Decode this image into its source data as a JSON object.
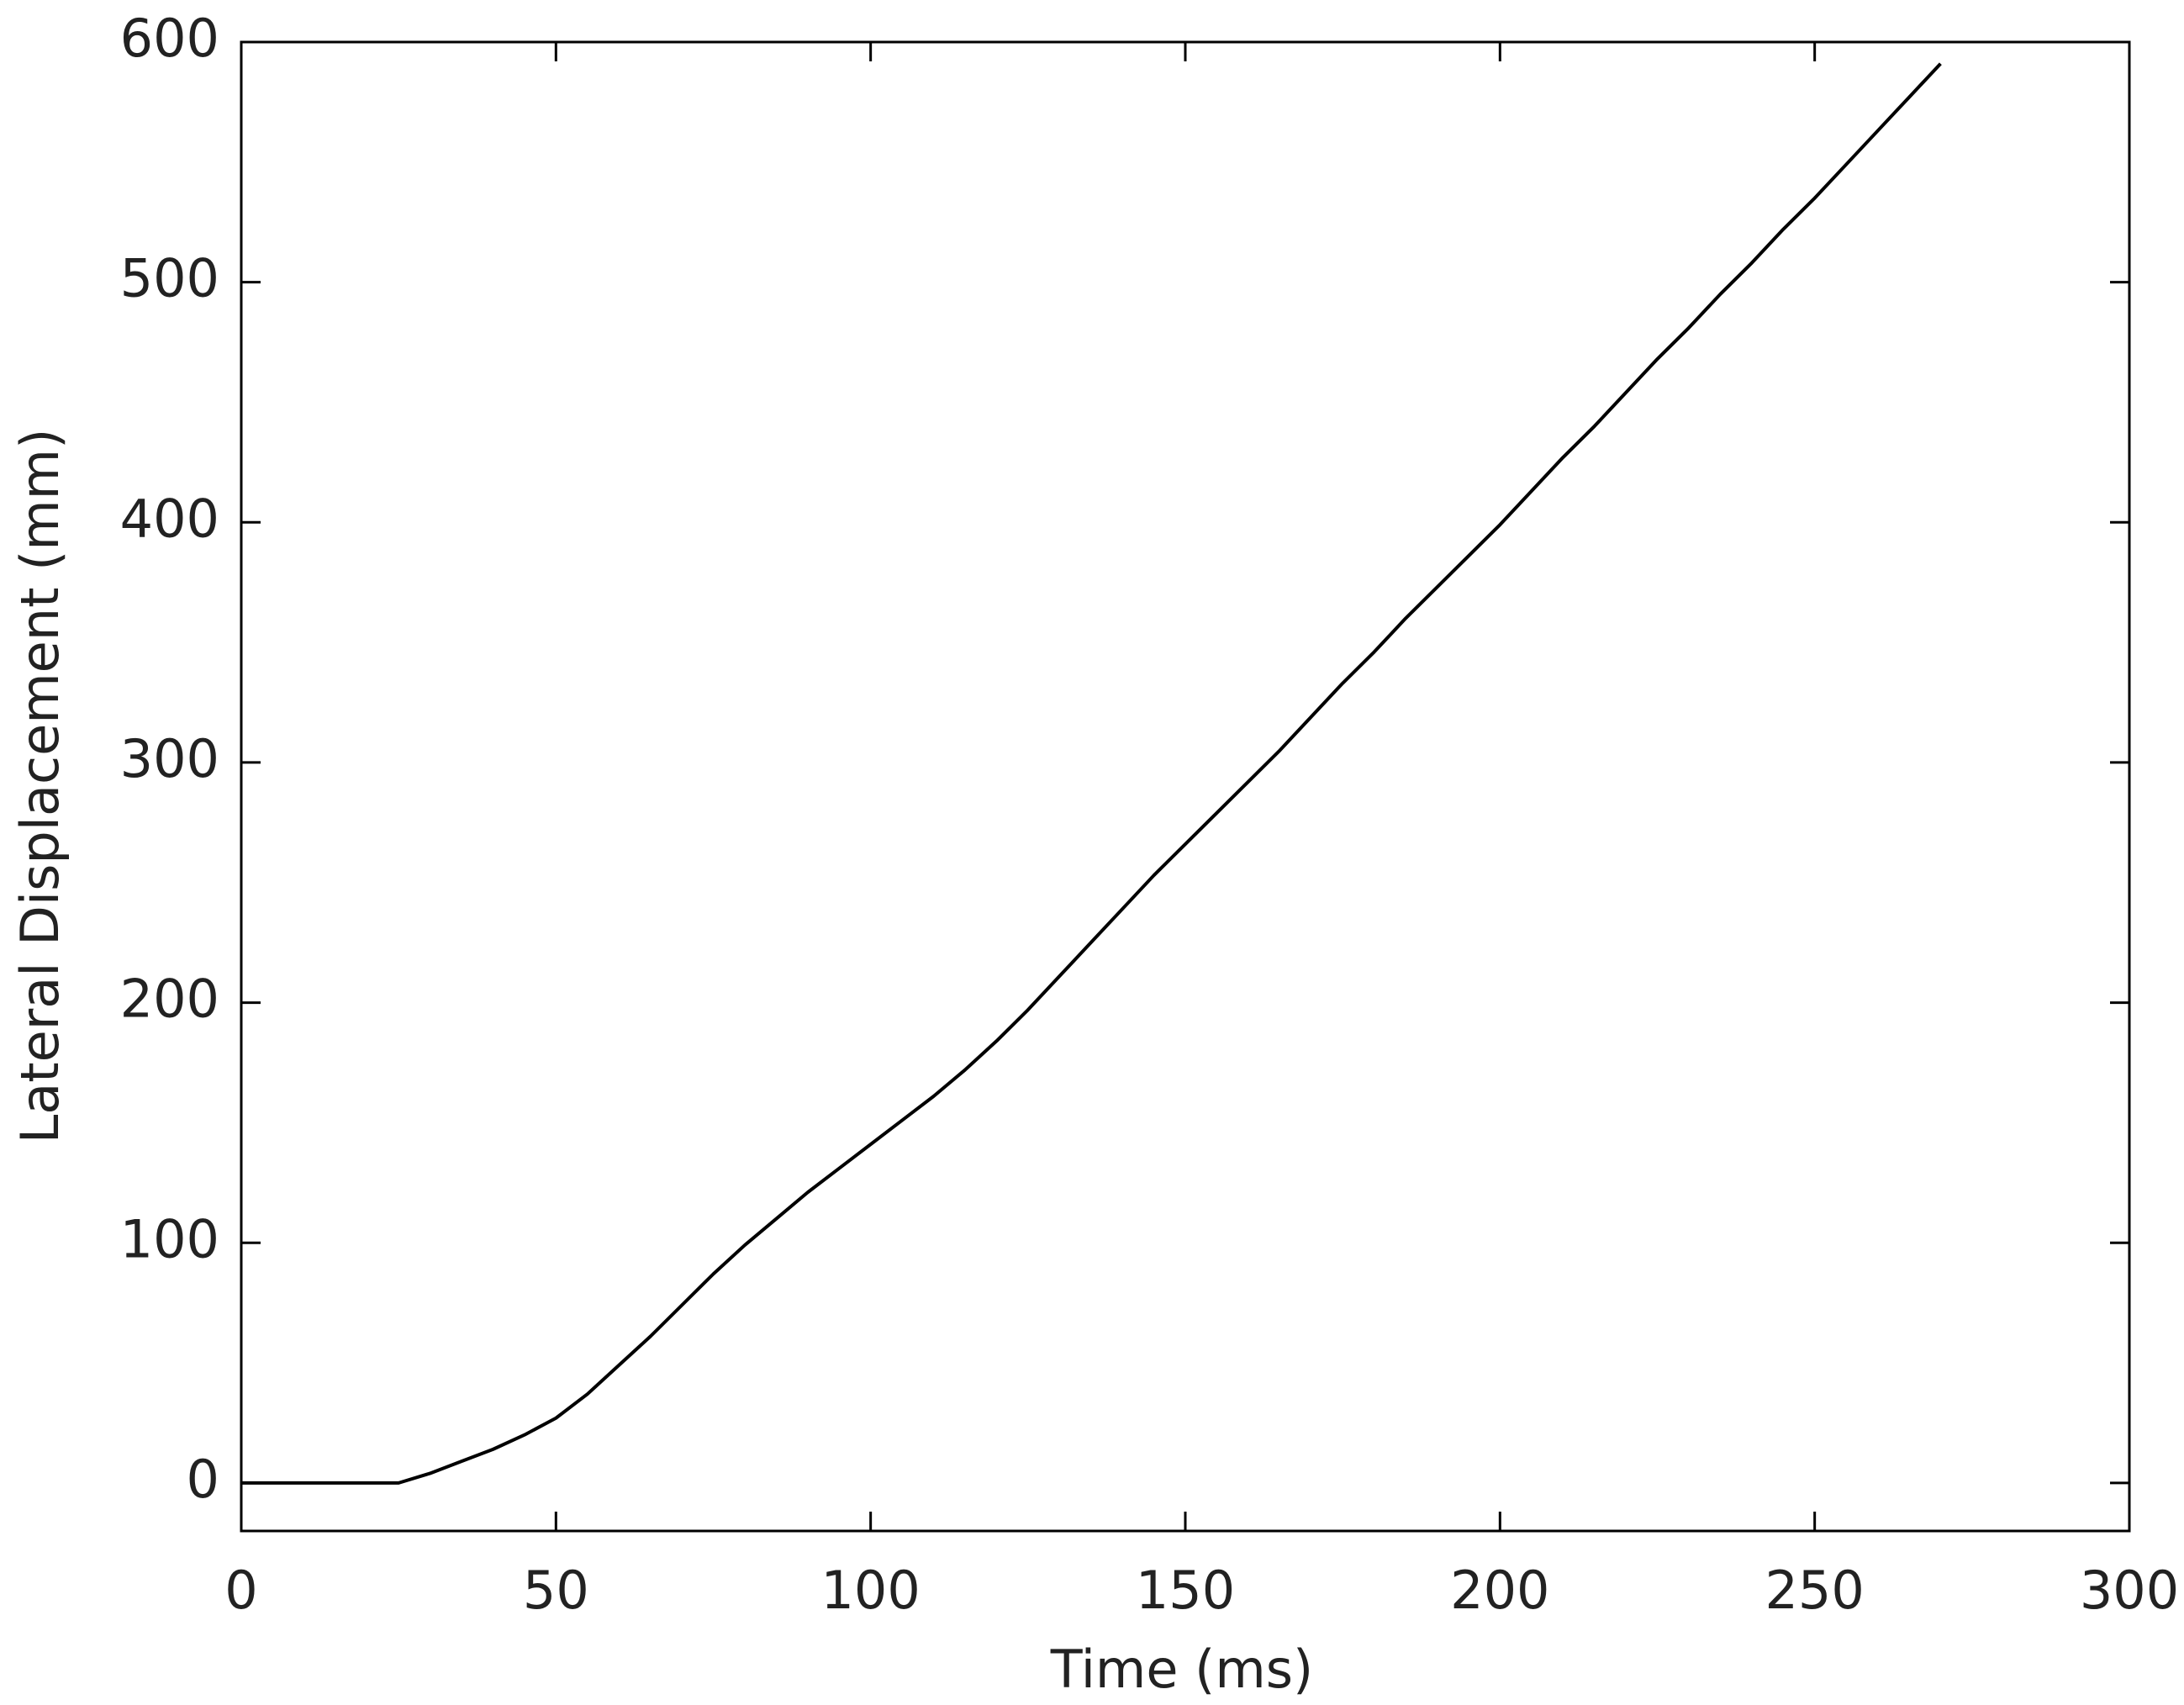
{
  "chart_data": {
    "type": "line",
    "xlabel": "Time (ms)",
    "ylabel": "Lateral Displacement (mm)",
    "x": [
      0,
      5,
      10,
      15,
      20,
      25,
      30,
      35,
      40,
      45,
      50,
      55,
      60,
      65,
      70,
      75,
      80,
      85,
      90,
      95,
      100,
      105,
      110,
      115,
      120,
      125,
      130,
      135,
      140,
      145,
      150,
      155,
      160,
      165,
      170,
      175,
      180,
      185,
      190,
      195,
      200,
      205,
      210,
      215,
      220,
      225,
      230,
      235,
      240,
      245,
      250,
      255,
      260,
      265,
      270
    ],
    "series": [
      {
        "color": "#000000",
        "values": [
          0,
          0,
          0,
          0,
          0,
          0,
          4,
          9,
          14,
          20,
          27,
          37,
          49,
          61,
          74,
          87,
          99,
          110,
          121,
          131,
          141,
          151,
          161,
          172,
          184,
          197,
          211,
          225,
          239,
          253,
          266,
          279,
          292,
          305,
          319,
          333,
          346,
          360,
          373,
          386,
          399,
          413,
          427,
          440,
          454,
          468,
          481,
          495,
          508,
          522,
          535,
          549,
          563,
          577,
          591
        ]
      }
    ],
    "xlim": [
      0,
      300
    ],
    "xticks": [
      0,
      50,
      100,
      150,
      200,
      250,
      300
    ],
    "ylim": [
      -20,
      600
    ],
    "yticks": [
      0,
      100,
      200,
      300,
      400,
      500,
      600
    ],
    "grid": false
  }
}
